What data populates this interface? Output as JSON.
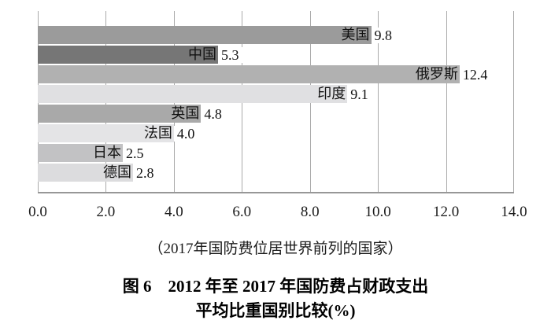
{
  "chart_data": {
    "type": "bar",
    "orientation": "horizontal",
    "categories": [
      "美国",
      "中国",
      "俄罗斯",
      "印度",
      "英国",
      "法国",
      "日本",
      "德国"
    ],
    "values": [
      9.8,
      5.3,
      12.4,
      9.1,
      4.8,
      4.0,
      2.5,
      2.8
    ],
    "value_labels": [
      "9.8",
      "5.3",
      "12.4",
      "9.1",
      "4.8",
      "4.0",
      "2.5",
      "2.8"
    ],
    "bar_colors": [
      "#9b9b9b",
      "#767676",
      "#b1b1b1",
      "#e0e0e2",
      "#a9a9a9",
      "#e4e4e6",
      "#c2c2c4",
      "#dcdcde"
    ],
    "x_ticks": [
      "0.0",
      "2.0",
      "4.0",
      "6.0",
      "8.0",
      "10.0",
      "12.0",
      "14.0"
    ],
    "x_tick_values": [
      0,
      2,
      4,
      6,
      8,
      10,
      12,
      14
    ],
    "xlim": [
      0,
      14
    ],
    "grid": true,
    "legend_position": "none",
    "caption": "（2017年国防费位居世界前列的国家）",
    "title_line1": "图 6　2012 年至 2017 年国防费占财政支出",
    "title_line2": "平均比重国别比较(%)"
  },
  "colors": {
    "background": "#ffffff",
    "gridline": "#aaaaaa",
    "axis_line": "#979797",
    "text": "#1c1c1c"
  }
}
